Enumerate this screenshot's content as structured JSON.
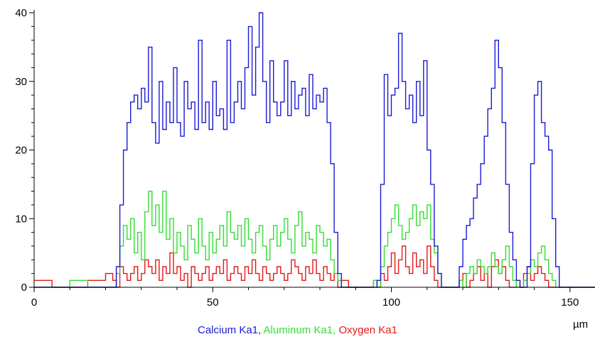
{
  "chart_data": {
    "type": "line",
    "step": true,
    "x_unit": "µm",
    "xlim": [
      0,
      157
    ],
    "ylim": [
      0,
      40
    ],
    "xticks": [
      0,
      50,
      100,
      150
    ],
    "yticks": [
      0,
      10,
      20,
      30,
      40
    ],
    "grid": false,
    "legend": {
      "placement": "bottom-center",
      "items": [
        {
          "label": "Calcium Ka1",
          "color": "#1a1ad6"
        },
        {
          "label": "Aluminum Ka1",
          "color": "#33dd33"
        },
        {
          "label": "Oxygen Ka1",
          "color": "#e01818"
        }
      ],
      "separator": ", "
    },
    "series": [
      {
        "name": "Calcium Ka1",
        "color": "#1a1ad6",
        "x": [
          0,
          5,
          10,
          15,
          20,
          22,
          23,
          24,
          25,
          26,
          27,
          28,
          29,
          30,
          31,
          32,
          33,
          34,
          35,
          36,
          37,
          38,
          39,
          40,
          41,
          42,
          43,
          44,
          45,
          46,
          47,
          48,
          49,
          50,
          51,
          52,
          53,
          54,
          55,
          56,
          57,
          58,
          59,
          60,
          61,
          62,
          63,
          64,
          65,
          66,
          67,
          68,
          69,
          70,
          71,
          72,
          73,
          74,
          75,
          76,
          77,
          78,
          79,
          80,
          81,
          82,
          83,
          84,
          85,
          86,
          88,
          92,
          95,
          96,
          97,
          98,
          99,
          100,
          101,
          102,
          103,
          104,
          105,
          106,
          107,
          108,
          109,
          110,
          111,
          112,
          113,
          114,
          116,
          118,
          119,
          120,
          121,
          122,
          123,
          124,
          125,
          126,
          127,
          128,
          129,
          130,
          131,
          132,
          133,
          134,
          135,
          136,
          137,
          138,
          139,
          140,
          141,
          142,
          143,
          144,
          145,
          146,
          147,
          148,
          152,
          156
        ],
        "y": [
          0,
          0,
          0,
          0,
          0,
          0,
          3,
          12,
          20,
          24,
          27,
          28,
          26,
          29,
          27,
          35,
          24,
          21,
          30,
          23,
          27,
          24,
          32,
          24,
          22,
          30,
          26,
          27,
          23,
          36,
          24,
          27,
          23,
          30,
          25,
          26,
          23,
          36,
          24,
          27,
          30,
          26,
          32,
          38,
          28,
          35,
          40,
          30,
          24,
          33,
          27,
          25,
          27,
          33,
          25,
          30,
          26,
          28,
          29,
          25,
          31,
          26,
          28,
          27,
          29,
          24,
          18,
          8,
          2,
          0,
          0,
          0,
          0,
          1,
          15,
          31,
          25,
          28,
          29,
          37,
          30,
          26,
          28,
          24,
          30,
          25,
          33,
          20,
          15,
          6,
          2,
          0,
          0,
          0,
          3,
          7,
          9,
          10,
          13,
          15,
          18,
          22,
          26,
          29,
          36,
          32,
          24,
          15,
          8,
          4,
          1,
          0,
          0,
          3,
          18,
          28,
          30,
          24,
          22,
          20,
          10,
          3,
          0,
          0,
          0,
          0
        ]
      },
      {
        "name": "Aluminum Ka1",
        "color": "#33dd33",
        "x": [
          0,
          5,
          10,
          15,
          20,
          22,
          23,
          24,
          25,
          26,
          27,
          28,
          29,
          30,
          31,
          32,
          33,
          34,
          35,
          36,
          37,
          38,
          39,
          40,
          41,
          42,
          43,
          44,
          45,
          46,
          47,
          48,
          49,
          50,
          51,
          52,
          53,
          54,
          55,
          56,
          57,
          58,
          59,
          60,
          61,
          62,
          63,
          64,
          65,
          66,
          67,
          68,
          69,
          70,
          71,
          72,
          73,
          74,
          75,
          76,
          77,
          78,
          79,
          80,
          81,
          82,
          83,
          84,
          85,
          86,
          88,
          92,
          95,
          96,
          97,
          98,
          99,
          100,
          101,
          102,
          103,
          104,
          105,
          106,
          107,
          108,
          109,
          110,
          111,
          112,
          113,
          114,
          116,
          118,
          119,
          120,
          121,
          122,
          123,
          124,
          125,
          126,
          127,
          128,
          129,
          130,
          131,
          132,
          133,
          134,
          135,
          136,
          137,
          138,
          139,
          140,
          141,
          142,
          143,
          144,
          145,
          146,
          147,
          148,
          152,
          156
        ],
        "y": [
          0,
          0,
          1,
          0,
          0,
          0,
          2,
          6,
          9,
          7,
          10,
          5,
          8,
          4,
          11,
          14,
          9,
          12,
          8,
          14,
          7,
          10,
          5,
          8,
          6,
          4,
          9,
          7,
          5,
          10,
          6,
          4,
          8,
          5,
          7,
          9,
          6,
          11,
          8,
          7,
          9,
          6,
          10,
          7,
          5,
          8,
          9,
          6,
          4,
          7,
          9,
          6,
          8,
          10,
          7,
          5,
          9,
          11,
          6,
          8,
          7,
          5,
          9,
          8,
          6,
          7,
          4,
          2,
          1,
          0,
          0,
          0,
          1,
          0,
          3,
          6,
          8,
          10,
          12,
          9,
          7,
          8,
          10,
          12,
          9,
          11,
          10,
          12,
          7,
          5,
          2,
          0,
          0,
          0,
          1,
          0,
          2,
          3,
          2,
          4,
          3,
          2,
          3,
          5,
          3,
          2,
          4,
          6,
          3,
          1,
          0,
          0,
          1,
          2,
          4,
          3,
          5,
          6,
          4,
          2,
          1,
          0,
          0,
          0,
          0,
          0
        ]
      },
      {
        "name": "Oxygen Ka1",
        "color": "#e01818",
        "x": [
          0,
          5,
          10,
          15,
          20,
          22,
          23,
          24,
          25,
          26,
          27,
          28,
          29,
          30,
          31,
          32,
          33,
          34,
          35,
          36,
          37,
          38,
          39,
          40,
          41,
          42,
          43,
          44,
          45,
          46,
          47,
          48,
          49,
          50,
          51,
          52,
          53,
          54,
          55,
          56,
          57,
          58,
          59,
          60,
          61,
          62,
          63,
          64,
          65,
          66,
          67,
          68,
          69,
          70,
          71,
          72,
          73,
          74,
          75,
          76,
          77,
          78,
          79,
          80,
          81,
          82,
          83,
          84,
          85,
          86,
          88,
          92,
          95,
          96,
          97,
          98,
          99,
          100,
          101,
          102,
          103,
          104,
          105,
          106,
          107,
          108,
          109,
          110,
          111,
          112,
          113,
          114,
          116,
          118,
          119,
          120,
          121,
          122,
          123,
          124,
          125,
          126,
          127,
          128,
          129,
          130,
          131,
          132,
          133,
          134,
          135,
          136,
          137,
          138,
          139,
          140,
          141,
          142,
          143,
          144,
          145,
          146,
          147,
          148,
          152,
          156
        ],
        "y": [
          1,
          0,
          0,
          1,
          2,
          1,
          0,
          3,
          2,
          1,
          2,
          3,
          1,
          2,
          4,
          3,
          2,
          4,
          1,
          3,
          2,
          5,
          2,
          3,
          1,
          2,
          0,
          3,
          2,
          1,
          2,
          3,
          1,
          2,
          3,
          2,
          4,
          1,
          2,
          3,
          2,
          1,
          3,
          2,
          4,
          2,
          1,
          3,
          2,
          1,
          2,
          3,
          2,
          1,
          2,
          4,
          3,
          2,
          1,
          3,
          2,
          4,
          2,
          1,
          3,
          2,
          1,
          2,
          0,
          1,
          0,
          0,
          1,
          0,
          2,
          1,
          3,
          5,
          2,
          4,
          6,
          3,
          2,
          5,
          3,
          4,
          2,
          6,
          3,
          1,
          0,
          0,
          0,
          0,
          1,
          2,
          0,
          1,
          2,
          3,
          1,
          2,
          0,
          3,
          4,
          2,
          3,
          1,
          0,
          0,
          1,
          0,
          2,
          3,
          1,
          2,
          3,
          2,
          1,
          0,
          0,
          0,
          0,
          0,
          0,
          0
        ]
      }
    ]
  }
}
